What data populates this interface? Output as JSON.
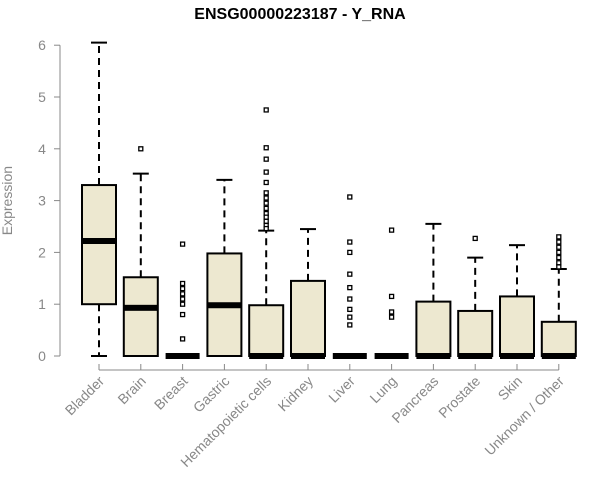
{
  "chart_data": {
    "type": "boxplot",
    "title": "ENSG00000223187 - Y_RNA",
    "xlabel": "",
    "ylabel": "Expression",
    "ylim": [
      0,
      6
    ],
    "yticks": [
      0,
      1,
      2,
      3,
      4,
      5,
      6
    ],
    "grid": false,
    "box_color": "#ede8d0",
    "categories": [
      "Bladder",
      "Brain",
      "Breast",
      "Gastric",
      "Hematopoietic cells",
      "Kidney",
      "Liver",
      "Lung",
      "Pancreas",
      "Prostate",
      "Skin",
      "Unknown / Other"
    ],
    "boxes": [
      {
        "whisker_low": 0,
        "q1": 1.0,
        "median": 2.22,
        "q3": 3.3,
        "whisker_high": 6.05,
        "outliers": []
      },
      {
        "whisker_low": 0,
        "q1": 0,
        "median": 0.93,
        "q3": 1.52,
        "whisker_high": 3.52,
        "outliers": [
          4.0
        ]
      },
      {
        "whisker_low": 0,
        "q1": 0,
        "median": 0,
        "q3": 0,
        "whisker_high": 0,
        "outliers": [
          2.16,
          1.4,
          1.3,
          1.2,
          1.1,
          1.0,
          0.8,
          0.33
        ]
      },
      {
        "whisker_low": 0,
        "q1": 0,
        "median": 0.98,
        "q3": 1.98,
        "whisker_high": 3.4,
        "outliers": []
      },
      {
        "whisker_low": 0,
        "q1": 0,
        "median": 0,
        "q3": 0.98,
        "whisker_high": 2.42,
        "outliers": [
          4.75,
          4.02,
          3.8,
          3.55,
          3.35,
          3.15,
          3.05,
          2.95,
          2.85,
          2.75,
          2.68,
          2.6,
          2.52,
          2.46
        ]
      },
      {
        "whisker_low": 0,
        "q1": 0,
        "median": 0,
        "q3": 1.45,
        "whisker_high": 2.45,
        "outliers": []
      },
      {
        "whisker_low": 0,
        "q1": 0,
        "median": 0,
        "q3": 0,
        "whisker_high": 0,
        "outliers": [
          3.07,
          2.2,
          2.0,
          1.58,
          1.32,
          1.1,
          0.9,
          0.75,
          0.6
        ]
      },
      {
        "whisker_low": 0,
        "q1": 0,
        "median": 0,
        "q3": 0,
        "whisker_high": 0,
        "outliers": [
          2.43,
          1.15,
          0.85,
          0.75
        ]
      },
      {
        "whisker_low": 0,
        "q1": 0,
        "median": 0,
        "q3": 1.05,
        "whisker_high": 2.55,
        "outliers": []
      },
      {
        "whisker_low": 0,
        "q1": 0,
        "median": 0,
        "q3": 0.87,
        "whisker_high": 1.9,
        "outliers": [
          2.27
        ]
      },
      {
        "whisker_low": 0,
        "q1": 0,
        "median": 0,
        "q3": 1.15,
        "whisker_high": 2.14,
        "outliers": []
      },
      {
        "whisker_low": 0,
        "q1": 0,
        "median": 0,
        "q3": 0.66,
        "whisker_high": 1.68,
        "outliers": [
          2.3,
          2.2,
          2.1,
          2.0,
          1.9,
          1.8,
          1.72
        ]
      }
    ]
  }
}
